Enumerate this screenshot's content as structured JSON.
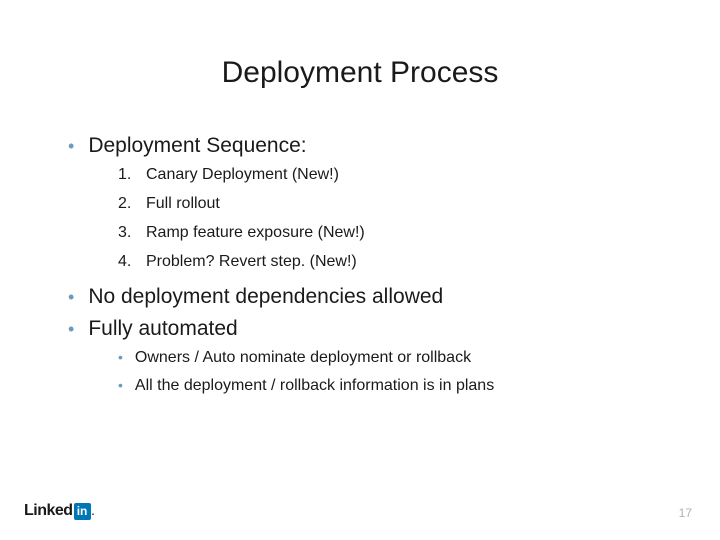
{
  "title": "Deployment Process",
  "bullets": {
    "seq_label": "Deployment Sequence:",
    "seq_items": {
      "1": {
        "num": "1.",
        "text": "Canary Deployment (New!)"
      },
      "2": {
        "num": "2.",
        "text": "Full rollout"
      },
      "3": {
        "num": "3.",
        "text": "Ramp feature exposure (New!)"
      },
      "4": {
        "num": "4.",
        "text": "Problem? Revert step. (New!)"
      }
    },
    "no_deps": "No deployment dependencies allowed",
    "automated": "Fully automated",
    "automated_sub": {
      "1": "Owners / Auto nominate deployment or rollback",
      "2": "All the deployment / rollback information is in plans"
    }
  },
  "logo": {
    "linked": "Linked",
    "in": "in",
    "dot": "."
  },
  "page_number": "17",
  "colors": {
    "bullet_accent": "#6a9cc2",
    "text": "#1a1a1a",
    "logo_blue": "#0077b5",
    "page_num": "#b0b0b0",
    "background": "#ffffff"
  },
  "typography": {
    "title_fontsize": 30,
    "level1_fontsize": 21,
    "level2_fontsize": 16,
    "logo_fontsize": 16,
    "pagenum_fontsize": 12
  }
}
